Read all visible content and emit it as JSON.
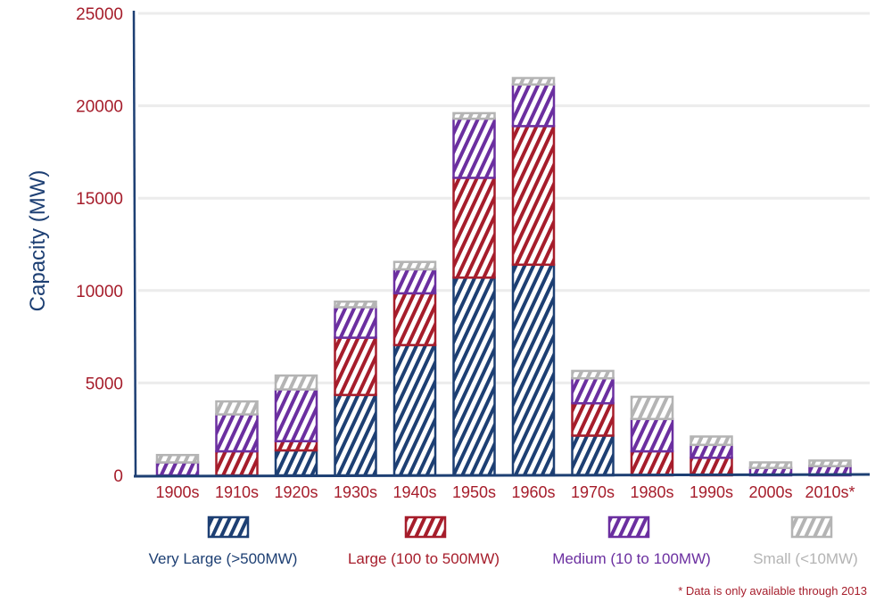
{
  "chart_data": {
    "type": "bar",
    "stacked": true,
    "title": "",
    "xlabel": "",
    "ylabel": "Capacity (MW)",
    "ylim": [
      0,
      25000
    ],
    "yticks": [
      0,
      5000,
      10000,
      15000,
      20000,
      25000
    ],
    "grid": true,
    "legend_position": "bottom",
    "categories": [
      "1900s",
      "1910s",
      "1920s",
      "1930s",
      "1940s",
      "1950s",
      "1960s",
      "1970s",
      "1980s",
      "1990s",
      "2000s",
      "2010s*"
    ],
    "series": [
      {
        "name": "Very Large (>500MW)",
        "color": "#1d3f73",
        "values": [
          0,
          0,
          1350,
          4350,
          7050,
          10700,
          11400,
          2150,
          0,
          0,
          0,
          0
        ]
      },
      {
        "name": "Large (100 to 500MW)",
        "color": "#a61d2b",
        "values": [
          0,
          1300,
          500,
          3100,
          2800,
          5400,
          7500,
          1750,
          1300,
          950,
          0,
          0
        ]
      },
      {
        "name": "Medium (10 to 100MW)",
        "color": "#6b2fa0",
        "values": [
          700,
          2000,
          2800,
          1650,
          1300,
          3200,
          2250,
          1350,
          1750,
          700,
          400,
          500
        ]
      },
      {
        "name": "Small (<10MW)",
        "color": "#b4b4b4",
        "values": [
          400,
          700,
          750,
          300,
          400,
          300,
          350,
          400,
          1200,
          450,
          300,
          300
        ]
      }
    ],
    "footnote": "* Data is only available through 2013"
  }
}
